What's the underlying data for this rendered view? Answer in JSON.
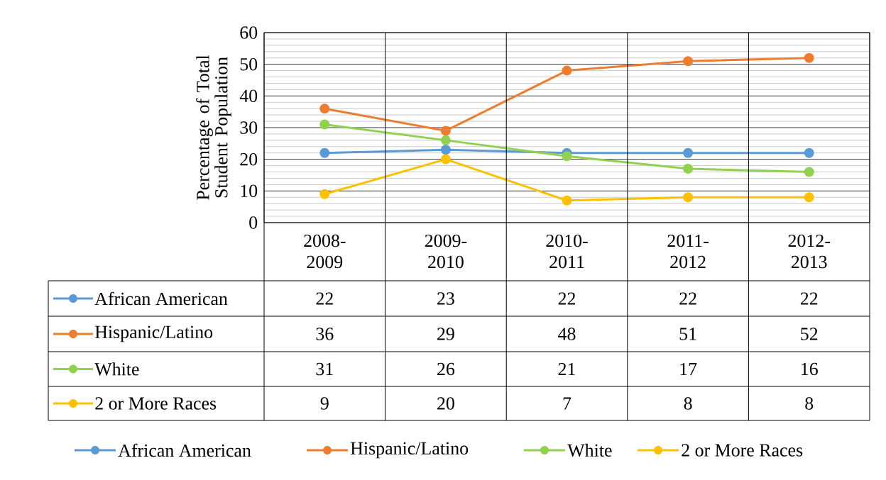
{
  "chart_data": {
    "type": "line",
    "ylabel": "Percentage of Total Student Population",
    "categories": [
      "2008-2009",
      "2009-2010",
      "2010-2011",
      "2011-2012",
      "2012-2013"
    ],
    "series": [
      {
        "name": "African American",
        "color": "#5b9bd5",
        "values": [
          22,
          23,
          22,
          22,
          22
        ]
      },
      {
        "name": "Hispanic/Latino",
        "color": "#ed7d31",
        "values": [
          36,
          29,
          48,
          51,
          52
        ]
      },
      {
        "name": "White",
        "color": "#92d050",
        "values": [
          31,
          26,
          21,
          17,
          16
        ]
      },
      {
        "name": "2 or More Races",
        "color": "#ffc000",
        "values": [
          9,
          20,
          7,
          8,
          8
        ]
      }
    ],
    "ylim": [
      0,
      60
    ],
    "yticks": [
      0,
      10,
      20,
      30,
      40,
      50,
      60
    ],
    "grid": true,
    "legend": "bottom",
    "marker": "circle",
    "line_style": "solid",
    "data_labels": true
  }
}
